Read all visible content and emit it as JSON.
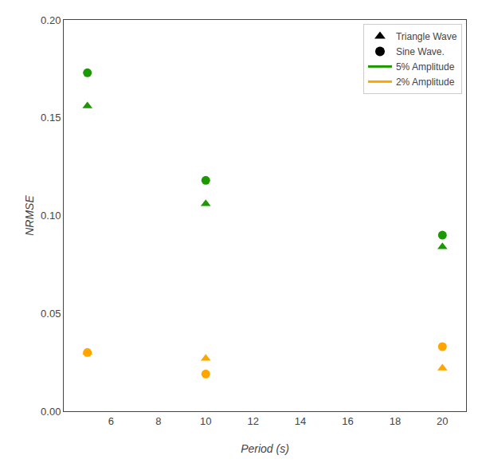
{
  "chart_data": {
    "type": "scatter",
    "x": [
      5,
      10,
      20
    ],
    "series": [
      {
        "color": "#1a9a00",
        "marker": "triangle",
        "values": [
          0.156,
          0.106,
          0.084
        ]
      },
      {
        "color": "#1a9a00",
        "marker": "circle",
        "values": [
          0.173,
          0.118,
          0.09
        ]
      },
      {
        "color": "#ffa500",
        "marker": "triangle",
        "values": [
          0.03,
          0.027,
          0.022
        ]
      },
      {
        "color": "#ffa500",
        "marker": "circle",
        "values": [
          0.03,
          0.019,
          0.033
        ]
      }
    ],
    "legend_entries": [
      {
        "name": "Triangle Wave",
        "color": "#000000",
        "marker": "triangle"
      },
      {
        "name": "Sine Wave.",
        "color": "#000000",
        "marker": "circle"
      },
      {
        "name": "5% Amplitude",
        "color": "#1a9a00",
        "line_style": "solid"
      },
      {
        "name": "2% Amplitude",
        "color": "#ffa500",
        "line_style": "solid"
      }
    ],
    "xlabel": "Period (s)",
    "ylabel": "NRMSE",
    "xlim": [
      4,
      21
    ],
    "ylim": [
      0.0,
      0.2
    ],
    "xticks": [
      6,
      8,
      10,
      12,
      14,
      16,
      18,
      20
    ],
    "yticks": [
      {
        "value": 0.0,
        "label": "0.00"
      },
      0.05,
      {
        "value": 0.1,
        "label": "0.10"
      },
      0.15,
      {
        "value": 0.2,
        "label": "0.20"
      }
    ],
    "grid": false,
    "legend": "upper right"
  }
}
